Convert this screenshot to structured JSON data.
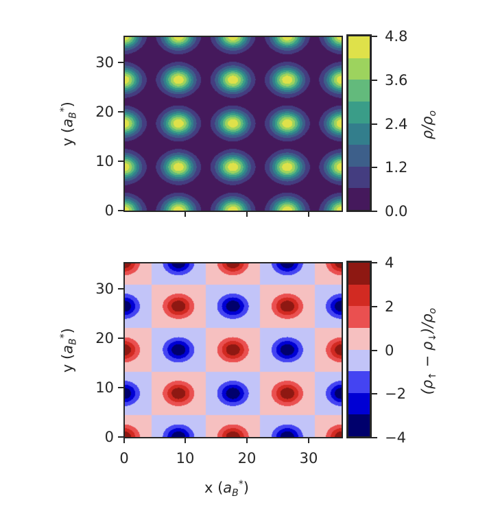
{
  "chart_data": [
    {
      "type": "heatmap",
      "subtype": "filled-contour",
      "title": "",
      "xlabel": "x (a_B*)",
      "ylabel": "y (a_B*)",
      "xlim": [
        0,
        35.3
      ],
      "ylim": [
        0,
        35.3
      ],
      "xticks": [
        0,
        10,
        20,
        30
      ],
      "xtick_labels_visible": false,
      "yticks": [
        0,
        10,
        20,
        30
      ],
      "lattice_period": 8.83,
      "peak_positions_x": [
        0,
        8.83,
        17.65,
        26.48,
        35.3
      ],
      "peak_positions_y": [
        0,
        8.83,
        17.65,
        26.48,
        35.3
      ],
      "peak_value": 4.7,
      "colormap": "viridis",
      "colorbar": {
        "label": "ρ/ρ_o",
        "ticks": [
          0.0,
          1.2,
          2.4,
          3.6,
          4.8
        ],
        "tick_labels": [
          "0.0",
          "1.2",
          "2.4",
          "3.6",
          "4.8"
        ],
        "levels": [
          0.0,
          0.6,
          1.2,
          1.8,
          2.4,
          3.0,
          3.6,
          4.2,
          4.8
        ],
        "colors": [
          "#45195c",
          "#443d80",
          "#3d5f8a",
          "#337e8c",
          "#3a9d88",
          "#63ba7c",
          "#9dd35e",
          "#dfe14a"
        ]
      }
    },
    {
      "type": "heatmap",
      "subtype": "filled-contour",
      "title": "",
      "xlabel": "x (a_B*)",
      "ylabel": "y (a_B*)",
      "xlim": [
        0,
        35.3
      ],
      "ylim": [
        0,
        35.3
      ],
      "xticks": [
        0,
        10,
        20,
        30
      ],
      "yticks": [
        0,
        10,
        20,
        30
      ],
      "lattice_period": 8.83,
      "pattern": "checkerboard antiferromagnetic; (0,0) positive (red), nearest neighbours negative (blue)",
      "peak_amplitude": 3.8,
      "colormap": "seismic",
      "colorbar": {
        "label": "(ρ↑ − ρ↓)/ρ_o",
        "ticks": [
          -4,
          -2,
          0,
          2,
          4
        ],
        "tick_labels": [
          "−4",
          "−2",
          "0",
          "2",
          "4"
        ],
        "levels": [
          -4,
          -3,
          -2,
          -1,
          0,
          1,
          2,
          3,
          4
        ],
        "colors": [
          "#00006c",
          "#0000d4",
          "#4444f2",
          "#c2c4f8",
          "#f6c0c0",
          "#ea5050",
          "#d22a22",
          "#8e1812"
        ]
      }
    }
  ],
  "top": {
    "ylabel_main": "y (",
    "ylabel_var": "a",
    "ylabel_sub": "B",
    "ylabel_sup": "*",
    "ylabel_close": ")",
    "ytick_labels": [
      "0",
      "10",
      "20",
      "30"
    ],
    "cbar_label_rho": "ρ/ρ",
    "cbar_label_sub": "o",
    "cbar_tick_labels": [
      "0.0",
      "1.2",
      "2.4",
      "3.6",
      "4.8"
    ]
  },
  "bottom": {
    "ylabel_main": "y (",
    "ylabel_var": "a",
    "ylabel_sub": "B",
    "ylabel_sup": "*",
    "ylabel_close": ")",
    "ytick_labels": [
      "0",
      "10",
      "20",
      "30"
    ],
    "xtick_labels": [
      "0",
      "10",
      "20",
      "30"
    ],
    "xlabel_main": "x (",
    "xlabel_var": "a",
    "xlabel_sub": "B",
    "xlabel_sup": "*",
    "xlabel_close": ")",
    "cbar_label_open": "(ρ",
    "cbar_label_up": "↑",
    "cbar_label_minus": " − ρ",
    "cbar_label_down": "↓",
    "cbar_label_close": ")/ρ",
    "cbar_label_sub": "o",
    "cbar_tick_labels": [
      "−4",
      "−2",
      "0",
      "2",
      "4"
    ]
  }
}
